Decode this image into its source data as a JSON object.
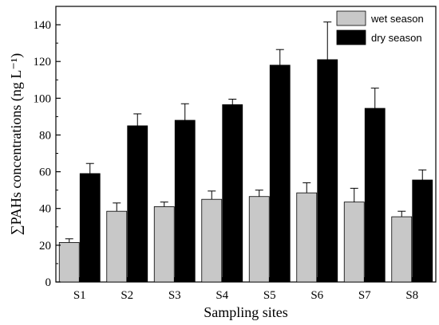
{
  "chart_data": {
    "type": "bar",
    "categories": [
      "S1",
      "S2",
      "S3",
      "S4",
      "S5",
      "S6",
      "S7",
      "S8"
    ],
    "series": [
      {
        "name": "wet season",
        "color": "#c8c8c8",
        "values": [
          21.5,
          38.5,
          41,
          45,
          46.5,
          48.5,
          43.5,
          35.5
        ],
        "errors": [
          2,
          4.5,
          2.5,
          4.5,
          3.5,
          5.5,
          7.5,
          3
        ]
      },
      {
        "name": "dry season",
        "color": "#000000",
        "values": [
          59,
          85,
          88,
          96.5,
          118,
          121,
          94.5,
          55.5
        ],
        "errors": [
          5.5,
          6.5,
          9,
          3,
          8.5,
          20.5,
          11,
          5.5
        ]
      }
    ],
    "xlabel": "Sampling sites",
    "ylabel": "∑PAHs concentrations (ng L⁻¹)",
    "ylim": [
      0,
      150
    ],
    "yticks": [
      0,
      20,
      40,
      60,
      80,
      100,
      120,
      140
    ],
    "grid": false,
    "legend_position": "top-right"
  }
}
